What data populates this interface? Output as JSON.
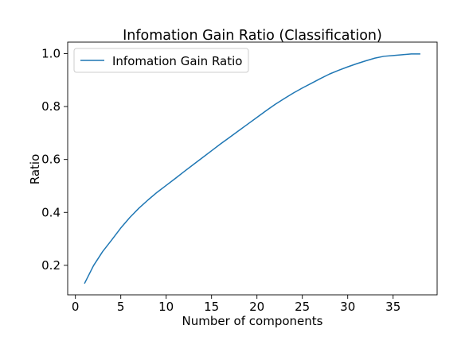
{
  "chart_data": {
    "type": "line",
    "title": "Infomation Gain Ratio (Classification)",
    "xlabel": "Number of components",
    "ylabel": "Ratio",
    "xlim": [
      -0.85,
      39.85
    ],
    "ylim": [
      0.0885,
      1.0435
    ],
    "xticks": [
      0,
      5,
      10,
      15,
      20,
      25,
      30,
      35
    ],
    "yticks": [
      0.2,
      0.4,
      0.6,
      0.8,
      1.0
    ],
    "xtick_labels": [
      "0",
      "5",
      "10",
      "15",
      "20",
      "25",
      "30",
      "35"
    ],
    "ytick_labels": [
      "0.2",
      "0.4",
      "0.6",
      "0.8",
      "1.0"
    ],
    "grid": false,
    "legend_position": "top-left",
    "series": [
      {
        "name": "Infomation Gain Ratio",
        "color": "#1f77b4",
        "x": [
          1,
          2,
          3,
          4,
          5,
          6,
          7,
          8,
          9,
          10,
          11,
          12,
          13,
          14,
          15,
          16,
          17,
          18,
          19,
          20,
          21,
          22,
          23,
          24,
          25,
          26,
          27,
          28,
          29,
          30,
          31,
          32,
          33,
          34,
          35,
          36,
          37,
          38
        ],
        "y": [
          0.131,
          0.199,
          0.252,
          0.296,
          0.341,
          0.381,
          0.416,
          0.447,
          0.476,
          0.502,
          0.528,
          0.555,
          0.581,
          0.607,
          0.633,
          0.659,
          0.684,
          0.709,
          0.734,
          0.759,
          0.784,
          0.808,
          0.83,
          0.851,
          0.87,
          0.888,
          0.906,
          0.923,
          0.937,
          0.95,
          0.962,
          0.973,
          0.983,
          0.99,
          0.993,
          0.996,
          0.999,
          0.999
        ]
      }
    ]
  }
}
